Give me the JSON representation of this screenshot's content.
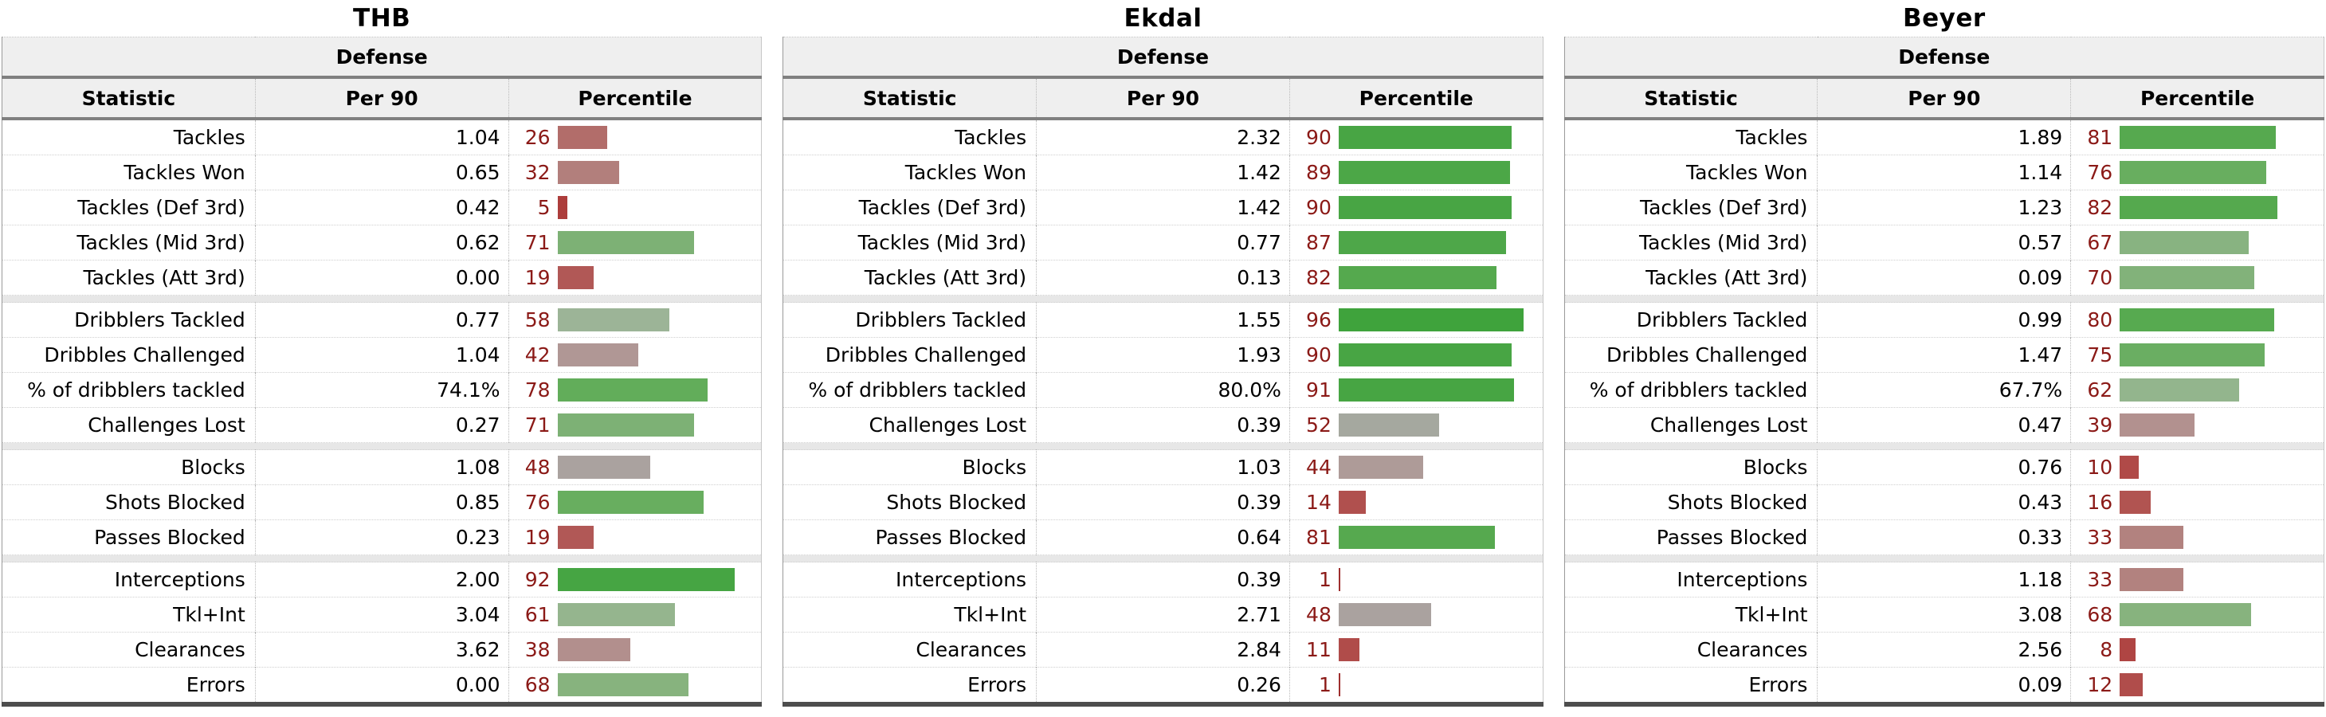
{
  "styles": {
    "percentile_number_color": "#8B1A17",
    "header_bg": "#EFEFEF",
    "separator_bg": "#E7E7E7",
    "thick_border": "#808080",
    "bottom_border": "#4D4D4D"
  },
  "chart_data": [
    {
      "type": "table",
      "title": "THB",
      "section": "Defense",
      "columns": [
        "Statistic",
        "Per 90",
        "Percentile"
      ],
      "percentile_scale": [
        0,
        100
      ],
      "groups": [
        {
          "rows": [
            {
              "label": "Tackles",
              "per90": "1.04",
              "percentile": 26,
              "bar_color": "#B26D6A"
            },
            {
              "label": "Tackles Won",
              "per90": "0.65",
              "percentile": 32,
              "bar_color": "#B27F7C"
            },
            {
              "label": "Tackles (Def 3rd)",
              "per90": "0.42",
              "percentile": 5,
              "bar_color": "#AD3D3B"
            },
            {
              "label": "Tackles (Mid 3rd)",
              "per90": "0.62",
              "percentile": 71,
              "bar_color": "#7DB175"
            },
            {
              "label": "Tackles (Att 3rd)",
              "per90": "0.00",
              "percentile": 19,
              "bar_color": "#B15856"
            }
          ]
        },
        {
          "rows": [
            {
              "label": "Dribblers Tackled",
              "per90": "0.77",
              "percentile": 58,
              "bar_color": "#9CB497"
            },
            {
              "label": "Dribbles Challenged",
              "per90": "1.04",
              "percentile": 42,
              "bar_color": "#B09795"
            },
            {
              "label": "% of dribblers tackled",
              "per90": "74.1%",
              "percentile": 78,
              "bar_color": "#62AD5A"
            },
            {
              "label": "Challenges Lost",
              "per90": "0.27",
              "percentile": 71,
              "bar_color": "#7DB175"
            }
          ]
        },
        {
          "rows": [
            {
              "label": "Blocks",
              "per90": "1.08",
              "percentile": 48,
              "bar_color": "#AAA29F"
            },
            {
              "label": "Shots Blocked",
              "per90": "0.85",
              "percentile": 76,
              "bar_color": "#68AE5F"
            },
            {
              "label": "Passes Blocked",
              "per90": "0.23",
              "percentile": 19,
              "bar_color": "#B15856"
            }
          ]
        },
        {
          "rows": [
            {
              "label": "Interceptions",
              "per90": "2.00",
              "percentile": 92,
              "bar_color": "#46A543"
            },
            {
              "label": "Tkl+Int",
              "per90": "3.04",
              "percentile": 61,
              "bar_color": "#95B58E"
            },
            {
              "label": "Clearances",
              "per90": "3.62",
              "percentile": 38,
              "bar_color": "#B28F8D"
            },
            {
              "label": "Errors",
              "per90": "0.00",
              "percentile": 68,
              "bar_color": "#87B37E"
            }
          ]
        }
      ]
    },
    {
      "type": "table",
      "title": "Ekdal",
      "section": "Defense",
      "columns": [
        "Statistic",
        "Per 90",
        "Percentile"
      ],
      "percentile_scale": [
        0,
        100
      ],
      "groups": [
        {
          "rows": [
            {
              "label": "Tackles",
              "per90": "2.32",
              "percentile": 90,
              "bar_color": "#48A544"
            },
            {
              "label": "Tackles Won",
              "per90": "1.42",
              "percentile": 89,
              "bar_color": "#4CA747"
            },
            {
              "label": "Tackles (Def 3rd)",
              "per90": "1.42",
              "percentile": 90,
              "bar_color": "#48A544"
            },
            {
              "label": "Tackles (Mid 3rd)",
              "per90": "0.77",
              "percentile": 87,
              "bar_color": "#4EA749"
            },
            {
              "label": "Tackles (Att 3rd)",
              "per90": "0.13",
              "percentile": 82,
              "bar_color": "#55A94E"
            }
          ]
        },
        {
          "rows": [
            {
              "label": "Dribblers Tackled",
              "per90": "1.55",
              "percentile": 96,
              "bar_color": "#3FA33C"
            },
            {
              "label": "Dribbles Challenged",
              "per90": "1.93",
              "percentile": 90,
              "bar_color": "#48A544"
            },
            {
              "label": "% of dribblers tackled",
              "per90": "80.0%",
              "percentile": 91,
              "bar_color": "#47A543"
            },
            {
              "label": "Challenges Lost",
              "per90": "0.39",
              "percentile": 52,
              "bar_color": "#A5A89F"
            }
          ]
        },
        {
          "rows": [
            {
              "label": "Blocks",
              "per90": "1.03",
              "percentile": 44,
              "bar_color": "#AE9B98"
            },
            {
              "label": "Shots Blocked",
              "per90": "0.39",
              "percentile": 14,
              "bar_color": "#B0504E"
            },
            {
              "label": "Passes Blocked",
              "per90": "0.64",
              "percentile": 81,
              "bar_color": "#56A94F"
            }
          ]
        },
        {
          "rows": [
            {
              "label": "Interceptions",
              "per90": "0.39",
              "percentile": 1,
              "bar_color": "#9F2F2E"
            },
            {
              "label": "Tkl+Int",
              "per90": "2.71",
              "percentile": 48,
              "bar_color": "#AAA29F"
            },
            {
              "label": "Clearances",
              "per90": "2.84",
              "percentile": 11,
              "bar_color": "#B04C4A"
            },
            {
              "label": "Errors",
              "per90": "0.26",
              "percentile": 1,
              "bar_color": "#9F2F2E"
            }
          ]
        }
      ]
    },
    {
      "type": "table",
      "title": "Beyer",
      "section": "Defense",
      "columns": [
        "Statistic",
        "Per 90",
        "Percentile"
      ],
      "percentile_scale": [
        0,
        100
      ],
      "groups": [
        {
          "rows": [
            {
              "label": "Tackles",
              "per90": "1.89",
              "percentile": 81,
              "bar_color": "#56A94F"
            },
            {
              "label": "Tackles Won",
              "per90": "1.14",
              "percentile": 76,
              "bar_color": "#68AE5F"
            },
            {
              "label": "Tackles (Def 3rd)",
              "per90": "1.23",
              "percentile": 82,
              "bar_color": "#55A94E"
            },
            {
              "label": "Tackles (Mid 3rd)",
              "per90": "0.57",
              "percentile": 67,
              "bar_color": "#88B381"
            },
            {
              "label": "Tackles (Att 3rd)",
              "per90": "0.09",
              "percentile": 70,
              "bar_color": "#82B27A"
            }
          ]
        },
        {
          "rows": [
            {
              "label": "Dribblers Tackled",
              "per90": "0.99",
              "percentile": 80,
              "bar_color": "#57AA50"
            },
            {
              "label": "Dribbles Challenged",
              "per90": "1.47",
              "percentile": 75,
              "bar_color": "#6AAE62"
            },
            {
              "label": "% of dribblers tackled",
              "per90": "67.7%",
              "percentile": 62,
              "bar_color": "#93B58D"
            },
            {
              "label": "Challenges Lost",
              "per90": "0.47",
              "percentile": 39,
              "bar_color": "#B2918F"
            }
          ]
        },
        {
          "rows": [
            {
              "label": "Blocks",
              "per90": "0.76",
              "percentile": 10,
              "bar_color": "#B04A48"
            },
            {
              "label": "Shots Blocked",
              "per90": "0.43",
              "percentile": 16,
              "bar_color": "#B15451"
            },
            {
              "label": "Passes Blocked",
              "per90": "0.33",
              "percentile": 33,
              "bar_color": "#B2827F"
            }
          ]
        },
        {
          "rows": [
            {
              "label": "Interceptions",
              "per90": "1.18",
              "percentile": 33,
              "bar_color": "#B2827F"
            },
            {
              "label": "Tkl+Int",
              "per90": "3.08",
              "percentile": 68,
              "bar_color": "#87B37E"
            },
            {
              "label": "Clearances",
              "per90": "2.56",
              "percentile": 8,
              "bar_color": "#AF4543"
            },
            {
              "label": "Errors",
              "per90": "0.09",
              "percentile": 12,
              "bar_color": "#B04D4B"
            }
          ]
        }
      ]
    }
  ]
}
